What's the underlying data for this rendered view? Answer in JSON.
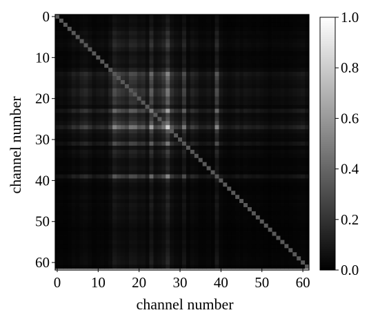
{
  "chart_data": {
    "type": "heatmap",
    "xlabel": "channel number",
    "ylabel": "channel number",
    "x_ticks": [
      "0",
      "10",
      "20",
      "30",
      "40",
      "50",
      "60"
    ],
    "y_ticks": [
      "0",
      "10",
      "20",
      "30",
      "40",
      "50",
      "60"
    ],
    "colorbar_ticks": [
      "0.0",
      "0.2",
      "0.4",
      "0.6",
      "0.8",
      "1.0"
    ],
    "colormap": "gray",
    "value_range": [
      0,
      1
    ],
    "n_channels": 62,
    "channel_range": [
      0,
      61
    ],
    "channel_weights": [
      0.1,
      0.12,
      0.1,
      0.14,
      0.22,
      0.18,
      0.26,
      0.3,
      0.22,
      0.14,
      0.18,
      0.2,
      0.16,
      0.28,
      0.58,
      0.46,
      0.4,
      0.34,
      0.52,
      0.5,
      0.36,
      0.4,
      0.24,
      0.7,
      0.3,
      0.36,
      0.5,
      0.9,
      0.38,
      0.26,
      0.22,
      0.52,
      0.16,
      0.28,
      0.22,
      0.14,
      0.14,
      0.18,
      0.14,
      0.58,
      0.18,
      0.12,
      0.1,
      0.12,
      0.16,
      0.12,
      0.16,
      0.14,
      0.12,
      0.14,
      0.12,
      0.1,
      0.08,
      0.1,
      0.1,
      0.12,
      0.1,
      0.12,
      0.14,
      0.16,
      0.18,
      0.12
    ],
    "note_values": "cell(i,j) = channel_weights[i] * channel_weights[j]; diagonal approximately equal"
  }
}
